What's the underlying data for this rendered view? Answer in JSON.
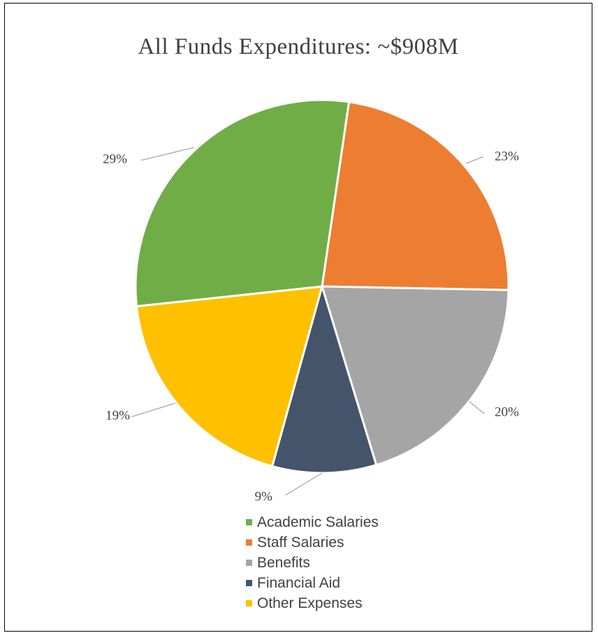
{
  "chart_data": {
    "type": "pie",
    "title": "All Funds Expenditures: ~$908M",
    "legend_position": "bottom",
    "slices": [
      {
        "label": "Academic Salaries",
        "value": 29,
        "display": "29%",
        "color": "#70ad47"
      },
      {
        "label": "Staff Salaries",
        "value": 23,
        "display": "23%",
        "color": "#ed7d31"
      },
      {
        "label": "Benefits",
        "value": 20,
        "display": "20%",
        "color": "#a5a5a5"
      },
      {
        "label": "Financial Aid",
        "value": 9,
        "display": "9%",
        "color": "#44546a"
      },
      {
        "label": "Other Expenses",
        "value": 19,
        "display": "19%",
        "color": "#ffc000"
      }
    ]
  }
}
